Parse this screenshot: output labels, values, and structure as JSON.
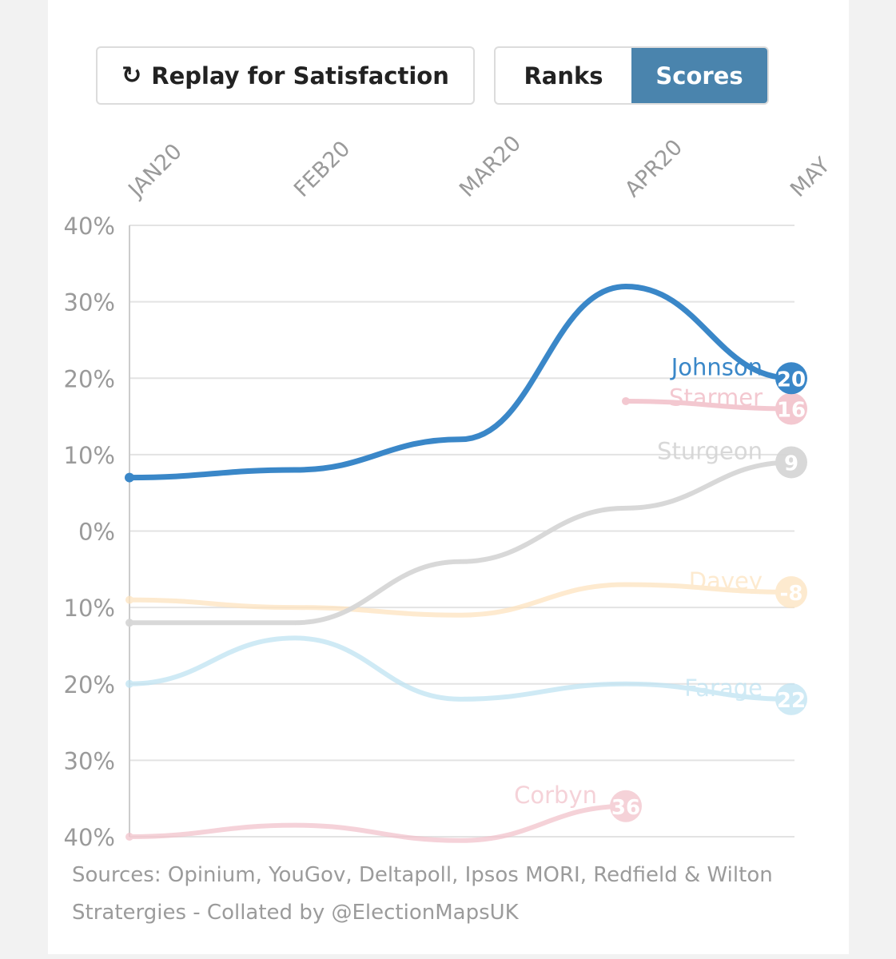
{
  "controls": {
    "replay_icon": "↻",
    "replay_label": "Replay for Satisfaction",
    "ranks_label": "Ranks",
    "scores_label": "Scores",
    "active_view": "Scores"
  },
  "chart_data": {
    "type": "line",
    "categories": [
      "JAN20",
      "FEB20",
      "MAR20",
      "APR20",
      "MAY"
    ],
    "y_ticks": [
      "40%",
      "30%",
      "20%",
      "10%",
      "0%",
      "10%",
      "20%",
      "30%",
      "40%"
    ],
    "ylim": [
      -40,
      40
    ],
    "grid": true,
    "series": [
      {
        "name": "Corbyn",
        "end_label": "36",
        "color": "#f2c3cc",
        "opacity": 0.75,
        "x": [
          0,
          1,
          2,
          3
        ],
        "values": [
          -40,
          -38.5,
          -40.5,
          -36
        ]
      },
      {
        "name": "Farage",
        "end_label": "22",
        "color": "#bfe3f2",
        "opacity": 0.75,
        "x": [
          0,
          1,
          2,
          3,
          4
        ],
        "values": [
          -20,
          -14,
          -22,
          -20,
          -22
        ]
      },
      {
        "name": "Davey",
        "end_label": "-8",
        "color": "#fde3bf",
        "opacity": 0.75,
        "x": [
          0,
          1,
          2,
          3,
          4
        ],
        "values": [
          -9,
          -10,
          -11,
          -7,
          -8
        ]
      },
      {
        "name": "Sturgeon",
        "end_label": "9",
        "color": "#d6d6d6",
        "opacity": 0.95,
        "x": [
          0,
          1,
          2,
          3,
          4
        ],
        "values": [
          -12,
          -12,
          -4,
          3,
          9
        ]
      },
      {
        "name": "Starmer",
        "end_label": "16",
        "color": "#f2c3cc",
        "opacity": 0.9,
        "x": [
          3,
          4
        ],
        "values": [
          17,
          16
        ]
      },
      {
        "name": "Johnson",
        "end_label": "20",
        "color": "#3a87c8",
        "opacity": 1,
        "x": [
          0,
          1,
          2,
          3,
          4
        ],
        "values": [
          7,
          8,
          12,
          32,
          20
        ]
      }
    ]
  },
  "footer": {
    "sources": "Sources: Opinium, YouGov, Deltapoll, Ipsos MORI, Redfield & Wilton Stratergies - Collated by @ElectionMapsUK"
  }
}
